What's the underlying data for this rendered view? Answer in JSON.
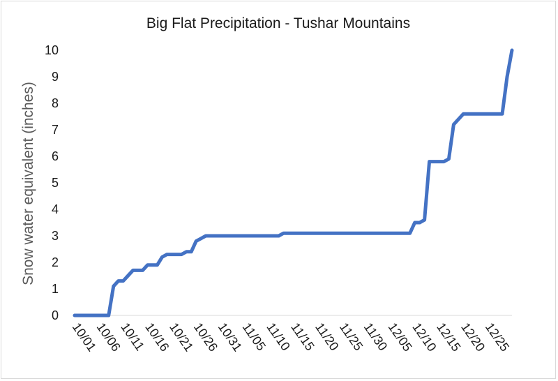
{
  "chart_data": {
    "type": "line",
    "title": "Big Flat Precipitation - Tushar Mountains",
    "xlabel": "",
    "ylabel": "Snow water equivalent (inches)",
    "ylim": [
      0,
      10
    ],
    "yticks": [
      "0",
      "1",
      "2",
      "3",
      "4",
      "5",
      "6",
      "7",
      "8",
      "9",
      "10"
    ],
    "x_tick_labels": [
      "10/01",
      "10/06",
      "10/11",
      "10/16",
      "10/21",
      "10/26",
      "10/31",
      "11/05",
      "11/10",
      "11/15",
      "11/20",
      "11/25",
      "11/30",
      "12/05",
      "12/10",
      "12/15",
      "12/20",
      "12/25"
    ],
    "grid": false,
    "line_color": "#4472C4",
    "series": [
      {
        "values": [
          0,
          0,
          0,
          0,
          0,
          0,
          0,
          0,
          1.1,
          1.3,
          1.3,
          1.5,
          1.7,
          1.7,
          1.7,
          1.9,
          1.9,
          1.9,
          2.2,
          2.3,
          2.3,
          2.3,
          2.3,
          2.4,
          2.4,
          2.8,
          2.9,
          3.0,
          3.0,
          3.0,
          3.0,
          3.0,
          3.0,
          3.0,
          3.0,
          3.0,
          3.0,
          3.0,
          3.0,
          3.0,
          3.0,
          3.0,
          3.0,
          3.1,
          3.1,
          3.1,
          3.1,
          3.1,
          3.1,
          3.1,
          3.1,
          3.1,
          3.1,
          3.1,
          3.1,
          3.1,
          3.1,
          3.1,
          3.1,
          3.1,
          3.1,
          3.1,
          3.1,
          3.1,
          3.1,
          3.1,
          3.1,
          3.1,
          3.1,
          3.1,
          3.5,
          3.5,
          3.6,
          5.8,
          5.8,
          5.8,
          5.8,
          5.9,
          7.2,
          7.4,
          7.6,
          7.6,
          7.6,
          7.6,
          7.6,
          7.6,
          7.6,
          7.6,
          7.6,
          9.0,
          10.0
        ]
      }
    ]
  }
}
